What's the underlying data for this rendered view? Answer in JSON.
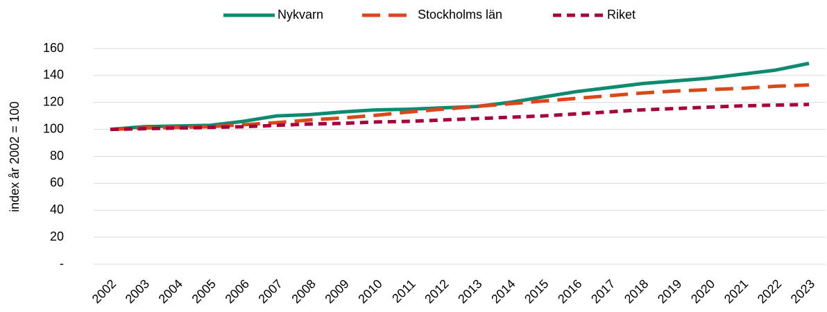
{
  "chart_data": {
    "type": "line",
    "y_label": "index år 2002 = 100",
    "categories": [
      "2002",
      "2003",
      "2004",
      "2005",
      "2006",
      "2007",
      "2008",
      "2009",
      "2010",
      "2011",
      "2012",
      "2013",
      "2014",
      "2015",
      "2016",
      "2017",
      "2018",
      "2019",
      "2020",
      "2021",
      "2022",
      "2023"
    ],
    "series": [
      {
        "name": "Nykvarn",
        "color": "#0e8a70",
        "dash": "solid",
        "values": [
          100,
          102,
          102.5,
          103,
          106,
          110,
          111,
          113,
          114.5,
          115,
          116,
          117,
          120,
          124,
          128,
          131,
          134,
          136,
          138,
          141,
          144,
          149
        ]
      },
      {
        "name": "Stockholms län",
        "color": "#d9471a",
        "dash": "long",
        "values": [
          100,
          101,
          101.5,
          102,
          103.5,
          105,
          107,
          108.5,
          110.5,
          113,
          115,
          117,
          119,
          121,
          123,
          125,
          127,
          128.5,
          129.5,
          130.5,
          132,
          133
        ]
      },
      {
        "name": "Riket",
        "color": "#a3003c",
        "dash": "short",
        "values": [
          100,
          100.5,
          101,
          101.5,
          102,
          103,
          104,
          104.5,
          105.5,
          106,
          107,
          108,
          109,
          110,
          111.5,
          113,
          114.5,
          115.5,
          116.5,
          117.5,
          118,
          118.5
        ]
      }
    ],
    "ylim": [
      0,
      160
    ],
    "yticks": [
      {
        "value": 0,
        "label": "-"
      },
      20,
      40,
      60,
      80,
      100,
      120,
      140,
      160
    ],
    "grid": true,
    "legend": "top"
  }
}
